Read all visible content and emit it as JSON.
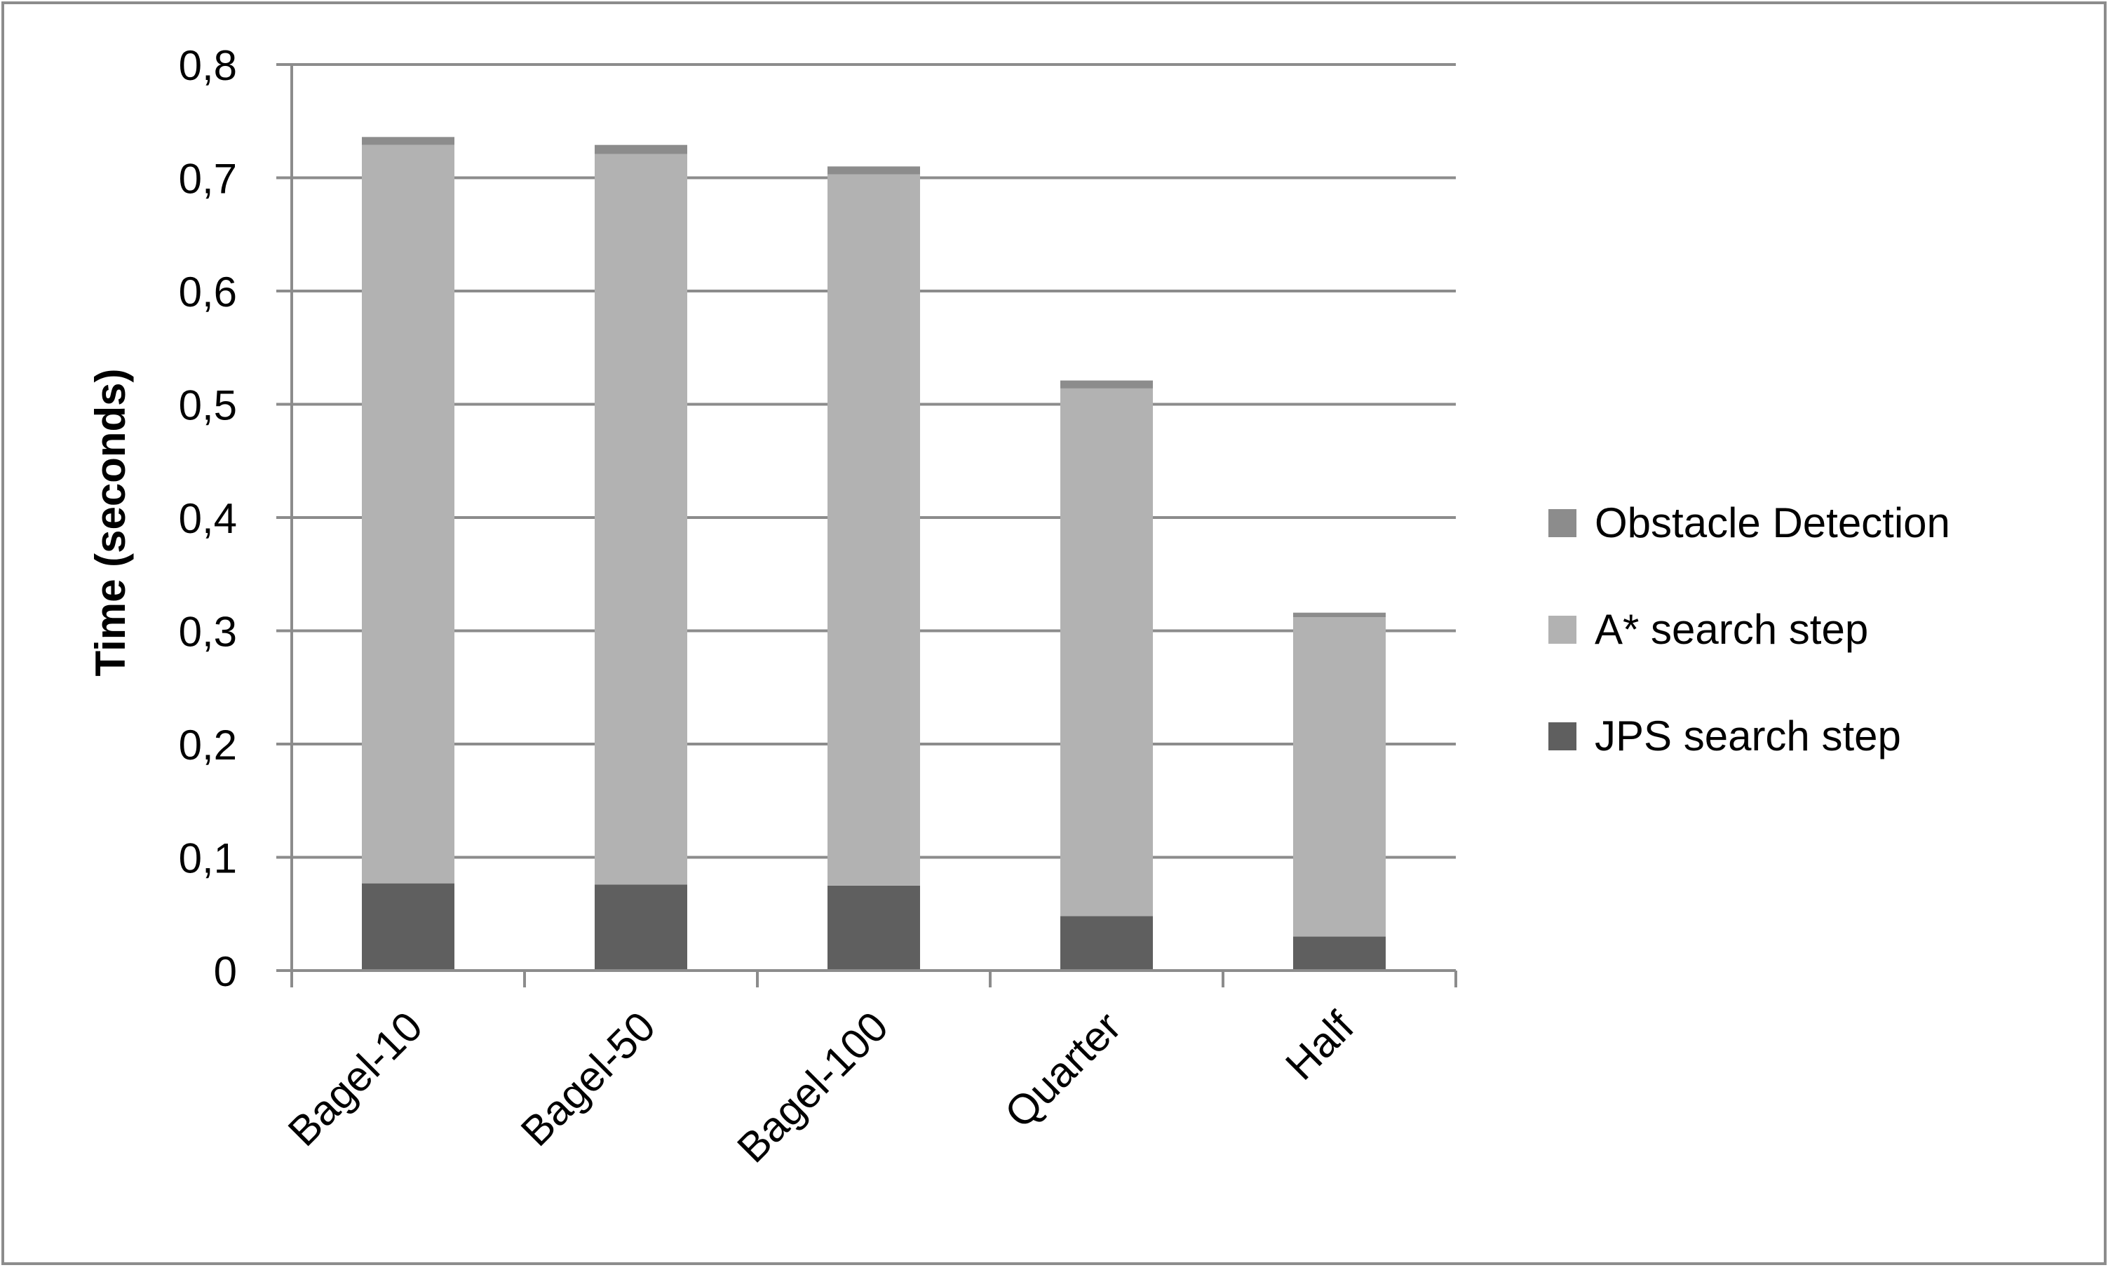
{
  "chart_data": {
    "type": "bar",
    "stacked": true,
    "title": "",
    "xlabel": "",
    "ylabel": "Time (seconds)",
    "ylim": [
      0,
      0.8
    ],
    "yticks": [
      "0",
      "0,1",
      "0,2",
      "0,3",
      "0,4",
      "0,5",
      "0,6",
      "0,7",
      "0,8"
    ],
    "categories": [
      "Bagel-10",
      "Bagel-50",
      "Bagel-100",
      "Quarter",
      "Half"
    ],
    "series": [
      {
        "name": "JPS search step",
        "color": "#5f5f5f",
        "values": [
          0.077,
          0.076,
          0.075,
          0.048,
          0.03
        ]
      },
      {
        "name": "A* search step",
        "color": "#b2b2b2",
        "values": [
          0.652,
          0.645,
          0.628,
          0.466,
          0.282
        ]
      },
      {
        "name": "Obstacle Detection",
        "color": "#8c8c8c",
        "values": [
          0.007,
          0.008,
          0.007,
          0.007,
          0.004
        ]
      }
    ],
    "legend_order": [
      "Obstacle Detection",
      "A* search step",
      "JPS search step"
    ],
    "legend_position": "right",
    "grid": true,
    "colors": {
      "gridline": "#8c8c8c",
      "axis": "#8c8c8c",
      "border": "#8c8c8c"
    }
  }
}
